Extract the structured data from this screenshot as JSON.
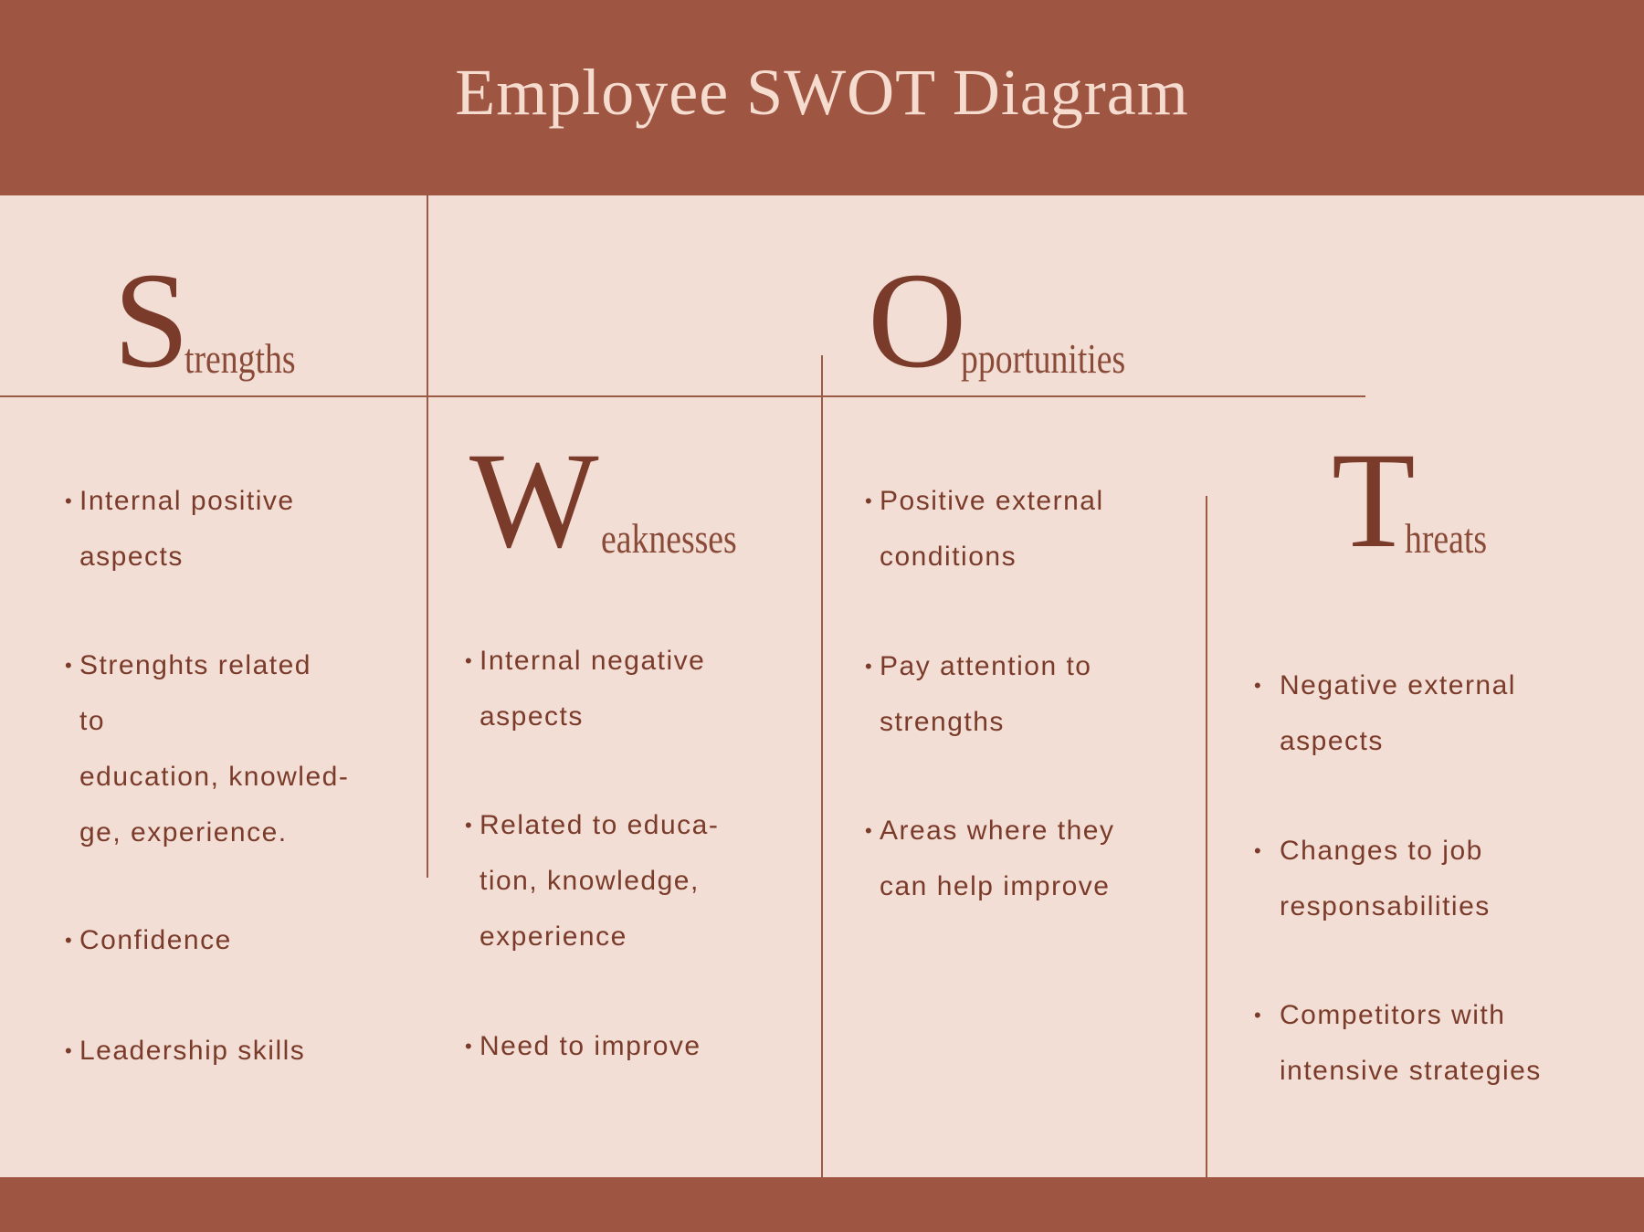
{
  "title": "Employee SWOT Diagram",
  "colors": {
    "header": "#9e5541",
    "background": "#f3ded5",
    "text": "#7a3b2a"
  },
  "strengths": {
    "letter": "S",
    "rest": "trengths",
    "items": [
      [
        "Internal positive",
        "aspects"
      ],
      [
        "Strenghts related",
        "to",
        "education, knowled-",
        "ge, experience."
      ],
      [
        "Confidence"
      ],
      [
        "Leadership skills"
      ]
    ]
  },
  "weaknesses": {
    "letter": "W",
    "rest": "eaknesses",
    "items": [
      [
        "Internal negative",
        "aspects"
      ],
      [
        "Related to educa-",
        "tion, knowledge,",
        "experience"
      ],
      [
        "Need to improve"
      ]
    ]
  },
  "opportunities": {
    "letter": "O",
    "rest": "pportunities",
    "items": [
      [
        "Positive external",
        "conditions"
      ],
      [
        "Pay attention to",
        "strengths"
      ],
      [
        "Areas where they",
        "can help improve"
      ]
    ]
  },
  "threats": {
    "letter": "T",
    "rest": "hreats",
    "items": [
      [
        "Negative external",
        "aspects"
      ],
      [
        "Changes to job",
        "responsabilities"
      ],
      [
        "Competitors with",
        "intensive strategies"
      ]
    ]
  },
  "bullet": "•"
}
